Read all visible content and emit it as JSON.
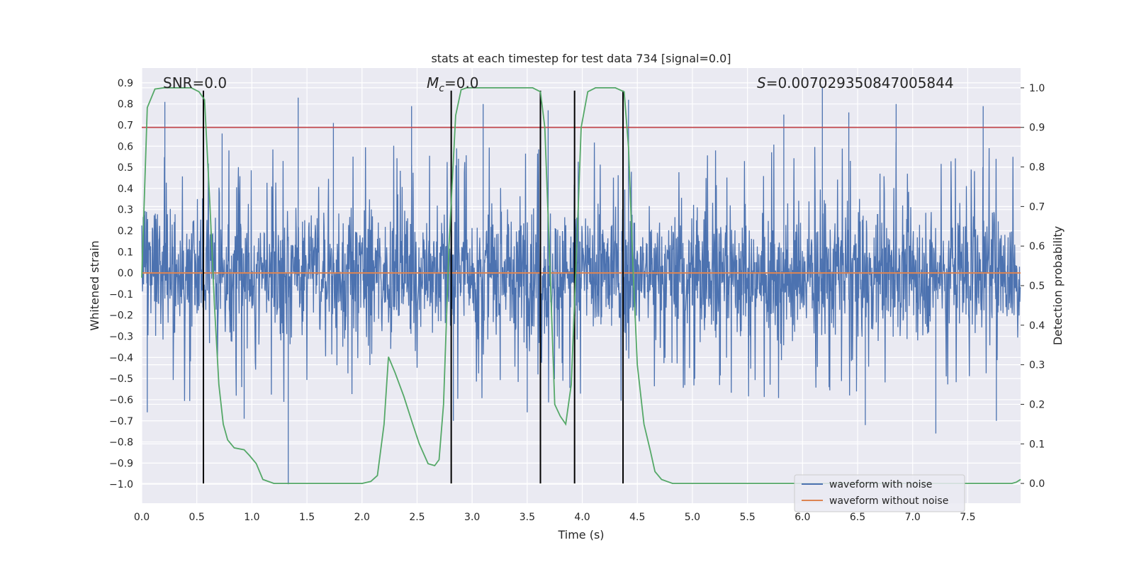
{
  "chart_data": {
    "type": "line",
    "title": "stats at each timestep for test data 734 [signal=0.0]",
    "xlabel": "Time (s)",
    "ylabel_left": "Whitened strain",
    "ylabel_right": "Detection probability",
    "xlim": [
      0.0,
      7.98
    ],
    "ylim_left": [
      -1.09,
      0.97
    ],
    "ylim_right": [
      -0.05,
      1.05
    ],
    "grid": true,
    "x_ticks": [
      "0.0",
      "0.5",
      "1.0",
      "1.5",
      "2.0",
      "2.5",
      "3.0",
      "3.5",
      "4.0",
      "4.5",
      "5.0",
      "5.5",
      "6.0",
      "6.5",
      "7.0",
      "7.5"
    ],
    "y_left_ticks": [
      "0.9",
      "0.8",
      "0.7",
      "0.6",
      "0.5",
      "0.4",
      "0.3",
      "0.2",
      "0.1",
      "0.0",
      "−0.1",
      "−0.2",
      "−0.3",
      "−0.4",
      "−0.5",
      "−0.6",
      "−0.7",
      "−0.8",
      "−0.9",
      "−1.0"
    ],
    "y_right_ticks": [
      "1.0",
      "0.9",
      "0.8",
      "0.7",
      "0.6",
      "0.5",
      "0.4",
      "0.3",
      "0.2",
      "0.1",
      "0.0"
    ],
    "annotations": {
      "snr": "SNR=0.0",
      "mc_symbol": "M",
      "mc_sub": "c",
      "mc_value": "=0.0",
      "s_symbol": "S",
      "s_value": "=0.007029350847005844"
    },
    "threshold": 0.9,
    "vertical_lines_s": [
      0.56,
      2.81,
      3.62,
      3.93,
      4.37
    ],
    "noise_amplitude_typical": 0.3,
    "noise_spikes": [
      {
        "t": 0.21,
        "v": 0.81
      },
      {
        "t": 0.73,
        "v": 0.66
      },
      {
        "t": 1.42,
        "v": 0.83
      },
      {
        "t": 1.74,
        "v": 0.71
      },
      {
        "t": 2.45,
        "v": 0.79
      },
      {
        "t": 3.1,
        "v": 0.8
      },
      {
        "t": 3.69,
        "v": 0.77
      },
      {
        "t": 4.42,
        "v": 0.82
      },
      {
        "t": 5.83,
        "v": 0.75
      },
      {
        "t": 6.18,
        "v": 0.88
      },
      {
        "t": 6.42,
        "v": 0.76
      },
      {
        "t": 6.85,
        "v": 0.8
      },
      {
        "t": 7.64,
        "v": 0.79
      },
      {
        "t": 0.05,
        "v": -0.66
      },
      {
        "t": 1.33,
        "v": -1.0
      },
      {
        "t": 0.93,
        "v": -0.69
      },
      {
        "t": 2.83,
        "v": -0.7
      },
      {
        "t": 7.21,
        "v": -0.76
      },
      {
        "t": 6.57,
        "v": -0.72
      },
      {
        "t": 7.76,
        "v": -0.7
      },
      {
        "t": 3.5,
        "v": -0.66
      }
    ],
    "series": [
      {
        "name": "waveform with noise",
        "color": "#4c72b0",
        "axis": "left",
        "kind": "noise"
      },
      {
        "name": "waveform without noise",
        "color": "#dd8452",
        "axis": "left",
        "values": 0.0
      },
      {
        "name": "Detection probability",
        "color": "#55a868",
        "axis": "right",
        "x": [
          0.0,
          0.05,
          0.12,
          0.2,
          0.3,
          0.45,
          0.52,
          0.57,
          0.62,
          0.66,
          0.7,
          0.74,
          0.78,
          0.84,
          0.93,
          0.98,
          1.04,
          1.1,
          1.2,
          1.5,
          1.9,
          2.0,
          2.08,
          2.14,
          2.2,
          2.24,
          2.3,
          2.38,
          2.46,
          2.52,
          2.6,
          2.66,
          2.7,
          2.74,
          2.79,
          2.85,
          2.9,
          2.95,
          3.05,
          3.3,
          3.55,
          3.62,
          3.66,
          3.7,
          3.75,
          3.8,
          3.85,
          3.9,
          3.95,
          3.99,
          4.05,
          4.12,
          4.3,
          4.38,
          4.42,
          4.46,
          4.5,
          4.56,
          4.62,
          4.66,
          4.72,
          4.77,
          4.82,
          4.9,
          5.5,
          6.5,
          7.5,
          7.7,
          7.8,
          7.85,
          7.9,
          7.94,
          7.98
        ],
        "y": [
          0.52,
          0.95,
          0.997,
          1.0,
          1.0,
          1.0,
          0.99,
          0.97,
          0.7,
          0.45,
          0.25,
          0.15,
          0.11,
          0.09,
          0.085,
          0.07,
          0.05,
          0.01,
          0.0,
          0.0,
          0.0,
          0.0,
          0.005,
          0.02,
          0.15,
          0.32,
          0.28,
          0.22,
          0.15,
          0.1,
          0.05,
          0.045,
          0.06,
          0.2,
          0.6,
          0.93,
          0.995,
          1.0,
          1.0,
          1.0,
          1.0,
          0.99,
          0.9,
          0.6,
          0.2,
          0.17,
          0.15,
          0.25,
          0.6,
          0.9,
          0.99,
          1.0,
          1.0,
          0.99,
          0.85,
          0.55,
          0.3,
          0.15,
          0.08,
          0.03,
          0.01,
          0.005,
          0.0,
          0.0,
          0.0,
          0.0,
          0.0,
          0.0,
          0.0,
          0.0,
          0.0,
          0.003,
          0.01
        ]
      }
    ],
    "legend": {
      "placement": "lower-right",
      "entries": [
        "waveform with noise",
        "waveform without noise"
      ]
    }
  },
  "colors": {
    "noise": "#4c72b0",
    "clean": "#dd8452",
    "probability": "#55a868",
    "threshold": "#c44e52",
    "vlines": "#000000",
    "plot_bg": "#eaeaf2"
  }
}
